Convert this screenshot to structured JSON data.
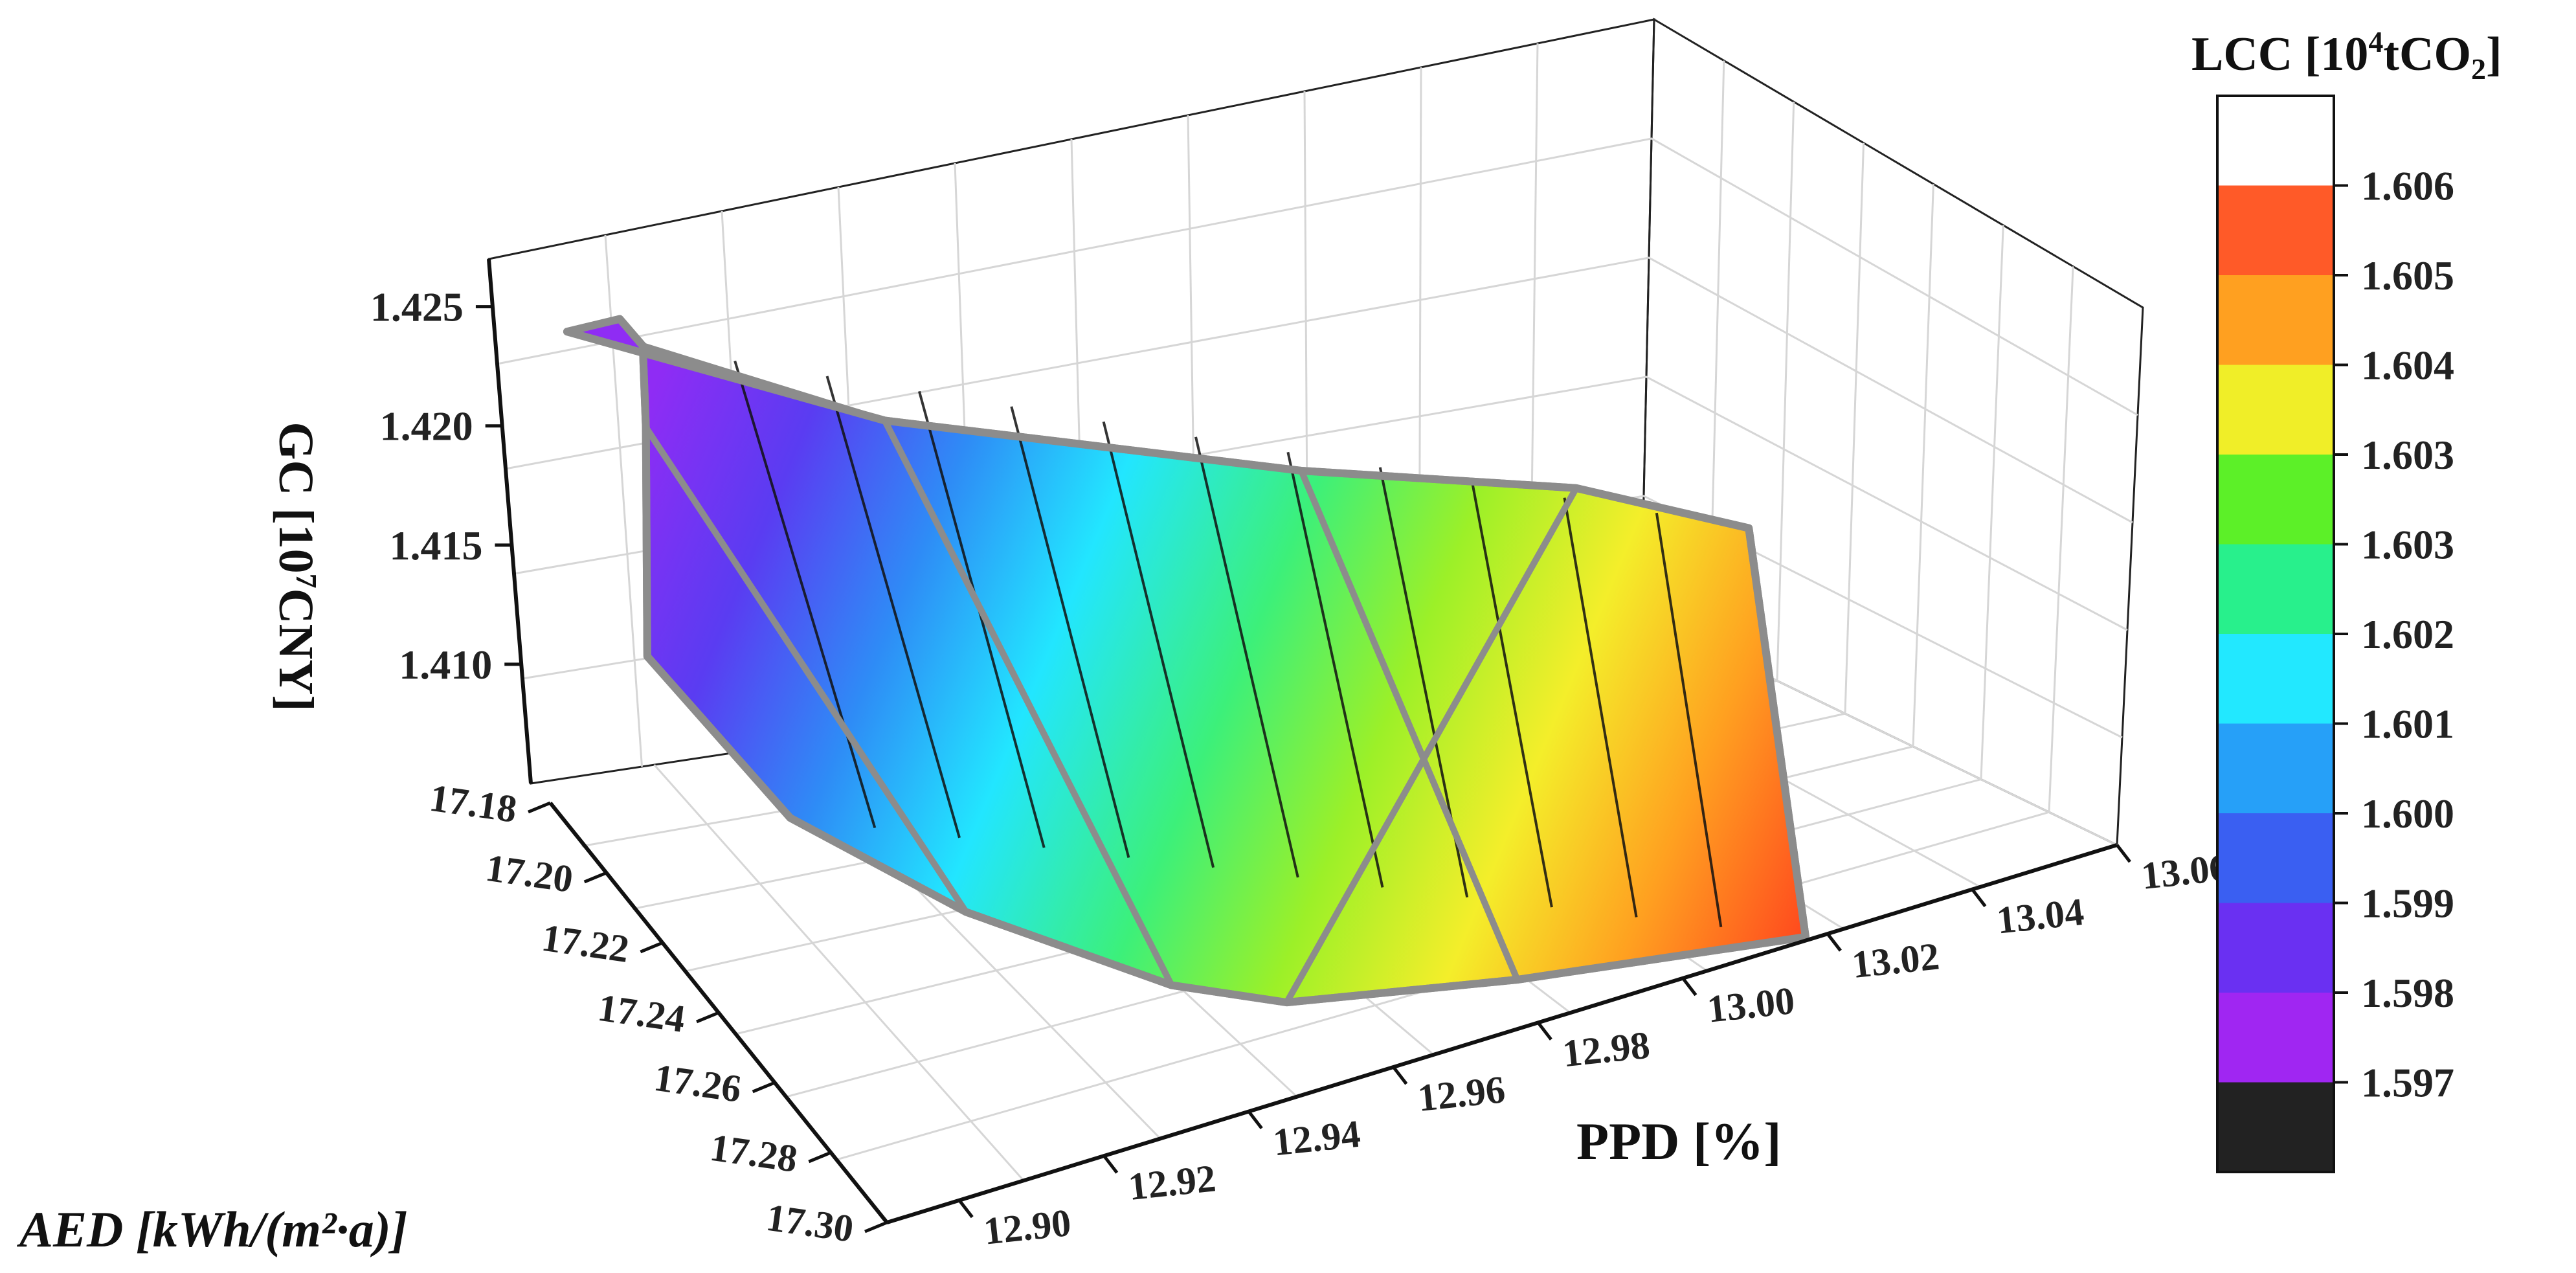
{
  "chart_data": {
    "type": "surface3d",
    "axes": {
      "x": {
        "label": "AED [kWh/(m²·a)]",
        "ticks": [
          "17.18",
          "17.20",
          "17.22",
          "17.24",
          "17.26",
          "17.28",
          "17.30"
        ],
        "range": [
          17.18,
          17.3
        ]
      },
      "y": {
        "label": "PPD [%]",
        "ticks": [
          "12.90",
          "12.92",
          "12.94",
          "12.96",
          "12.98",
          "13.00",
          "13.02",
          "13.04",
          "13.06"
        ],
        "range": [
          12.89,
          13.06
        ]
      },
      "z": {
        "label_main": "GC [10",
        "label_sup": "7",
        "label_tail": "CNY]",
        "ticks": [
          "1.410",
          "1.415",
          "1.420",
          "1.425"
        ],
        "range": [
          1.405,
          1.427
        ]
      }
    },
    "colorbar": {
      "title_main": "LCC [10",
      "title_sup": "4",
      "title_mid": "tCO",
      "title_sub": "2",
      "title_end": "]",
      "levels": [
        "1.606",
        "1.605",
        "1.604",
        "1.603",
        "1.603",
        "1.602",
        "1.601",
        "1.600",
        "1.599",
        "1.598",
        "1.597"
      ],
      "colors": [
        "#ffffff",
        "#ff5a28",
        "#ffa020",
        "#f0ee28",
        "#5cf028",
        "#28f08c",
        "#22e8ff",
        "#26a0f8",
        "#3a5ff2",
        "#6a30f2",
        "#a026f2",
        "#222222"
      ]
    },
    "grid": true,
    "surface_points": [
      {
        "aed": 17.182,
        "ppd": 12.895,
        "gc": 1.425,
        "lcc": 1.598
      },
      {
        "aed": 17.182,
        "ppd": 12.903,
        "gc": 1.4252,
        "lcc": 1.5982
      },
      {
        "aed": 17.188,
        "ppd": 12.905,
        "gc": 1.4245,
        "lcc": 1.5986
      },
      {
        "aed": 17.198,
        "ppd": 12.903,
        "gc": 1.422,
        "lcc": 1.599
      },
      {
        "aed": 17.215,
        "ppd": 12.899,
        "gc": 1.414,
        "lcc": 1.5995
      },
      {
        "aed": 17.238,
        "ppd": 12.915,
        "gc": 1.4085,
        "lcc": 1.601
      },
      {
        "aed": 17.265,
        "ppd": 12.935,
        "gc": 1.406,
        "lcc": 1.6025
      },
      {
        "aed": 17.29,
        "ppd": 12.96,
        "gc": 1.404,
        "lcc": 1.6033
      },
      {
        "aed": 17.3,
        "ppd": 12.975,
        "gc": 1.4035,
        "lcc": 1.604
      },
      {
        "aed": 17.3,
        "ppd": 13.01,
        "gc": 1.403,
        "lcc": 1.605
      },
      {
        "aed": 17.295,
        "ppd": 13.055,
        "gc": 1.4025,
        "lcc": 1.606
      },
      {
        "aed": 17.24,
        "ppd": 13.06,
        "gc": 1.4148,
        "lcc": 1.6048
      },
      {
        "aed": 17.215,
        "ppd": 13.04,
        "gc": 1.4152,
        "lcc": 1.604
      },
      {
        "aed": 17.208,
        "ppd": 13.0,
        "gc": 1.417,
        "lcc": 1.603
      },
      {
        "aed": 17.195,
        "ppd": 12.94,
        "gc": 1.4205,
        "lcc": 1.6005
      }
    ]
  }
}
